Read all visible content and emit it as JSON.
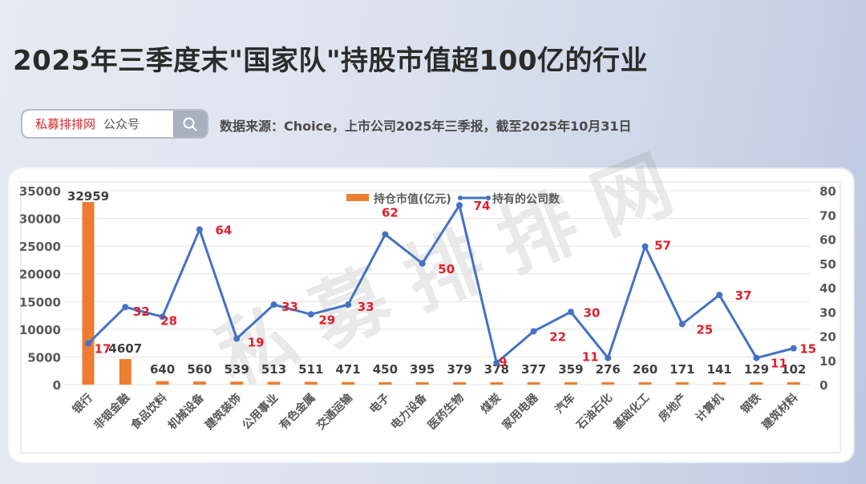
{
  "header": {
    "title": "2025年三季度末\"国家队\"持股市值超100亿的行业",
    "search_box": {
      "brand": "私募排排网",
      "suffix": "公众号",
      "icon": "search-icon"
    },
    "source": "数据来源：Choice，上市公司2025年三季报，截至2025年10月31日"
  },
  "watermark": "私募排排网",
  "colors": {
    "bar": "#ed7d31",
    "line": "#4472c4",
    "line_label": "#e0202a",
    "bar_label": "#404040",
    "axis_text": "#595959",
    "grid": "#e4e4e4"
  },
  "chart_data": {
    "type": "bar+line",
    "title": "2025年三季度末\"国家队\"持股市值超100亿的行业",
    "categories": [
      "银行",
      "非银金融",
      "食品饮料",
      "机械设备",
      "建筑装饰",
      "公用事业",
      "有色金属",
      "交通运输",
      "电子",
      "电力设备",
      "医药生物",
      "煤炭",
      "家用电器",
      "汽车",
      "石油石化",
      "基础化工",
      "房地产",
      "计算机",
      "钢铁",
      "建筑材料"
    ],
    "series": [
      {
        "name": "持仓市值(亿元)",
        "type": "bar",
        "axis": "left",
        "values": [
          32959,
          4607,
          640,
          560,
          539,
          513,
          511,
          471,
          450,
          395,
          379,
          378,
          377,
          359,
          276,
          260,
          171,
          141,
          129,
          102
        ]
      },
      {
        "name": "持有的公司数",
        "type": "line",
        "axis": "right",
        "values": [
          17,
          32,
          28,
          64,
          19,
          33,
          29,
          33,
          62,
          50,
          74,
          9,
          22,
          30,
          11,
          57,
          25,
          37,
          11,
          15
        ]
      }
    ],
    "left_axis": {
      "ylim": [
        0,
        35000
      ],
      "ticks": [
        "0",
        "5000",
        "10000",
        "15000",
        "20000",
        "25000",
        "30000",
        "35000"
      ]
    },
    "right_axis": {
      "ylim": [
        0,
        80
      ],
      "ticks": [
        "0",
        "10",
        "20",
        "30",
        "40",
        "50",
        "60",
        "70",
        "80"
      ]
    },
    "legend": {
      "position": "top-center",
      "entries": [
        "持仓市值(亿元)",
        "持有的公司数"
      ]
    },
    "grid": true,
    "xlabel": "",
    "ylabel": ""
  }
}
